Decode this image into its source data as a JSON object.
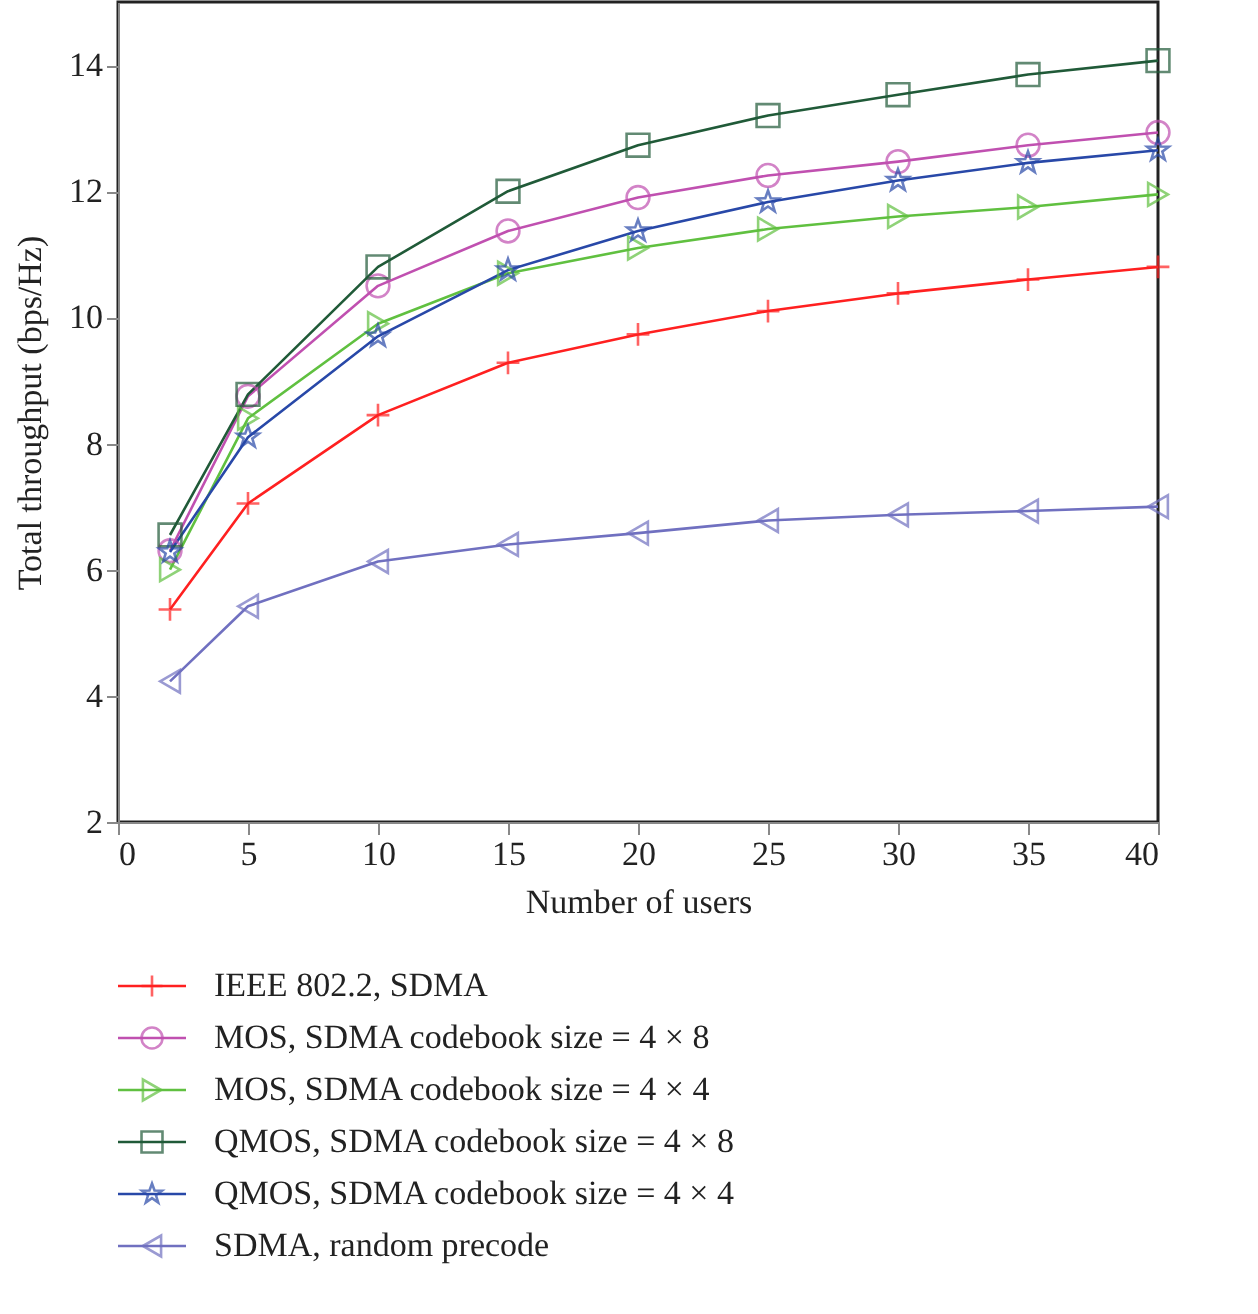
{
  "chart_data": {
    "type": "line",
    "xlabel": "Number of users",
    "ylabel": "Total throughput (bps/Hz)",
    "x": [
      2,
      5,
      10,
      15,
      20,
      25,
      30,
      35,
      40
    ],
    "xlim": [
      0,
      40
    ],
    "xticks": [
      0,
      5,
      10,
      15,
      20,
      25,
      30,
      35,
      40
    ],
    "ylim": [
      2,
      15
    ],
    "yticks": [
      2,
      4,
      6,
      8,
      10,
      12,
      14
    ],
    "grid": false,
    "legend": "bottom",
    "line_style": "solid",
    "series": [
      {
        "name": "IEEE 802.2, SDMA",
        "color": "#ff2020",
        "marker": "cross",
        "values": [
          5.37,
          7.05,
          8.45,
          9.28,
          9.73,
          10.1,
          10.38,
          10.6,
          10.8
        ]
      },
      {
        "name": "MOS, SDMA codebook size = 4 × 8",
        "color": "#c050b0",
        "marker": "circle",
        "values": [
          6.3,
          8.75,
          10.5,
          11.37,
          11.9,
          12.25,
          12.47,
          12.73,
          12.93
        ]
      },
      {
        "name": "MOS, SDMA codebook size = 4 × 4",
        "color": "#60c040",
        "marker": "triangle-right",
        "values": [
          6.0,
          8.4,
          9.9,
          10.7,
          11.1,
          11.4,
          11.6,
          11.75,
          11.95
        ]
      },
      {
        "name": "QMOS, SDMA codebook size = 4 × 8",
        "color": "#205a38",
        "marker": "square",
        "values": [
          6.55,
          8.78,
          10.8,
          12.0,
          12.73,
          13.2,
          13.53,
          13.85,
          14.07
        ]
      },
      {
        "name": "QMOS, SDMA codebook size = 4 × 4",
        "color": "#2848a8",
        "marker": "star",
        "values": [
          6.28,
          8.1,
          9.7,
          10.75,
          11.37,
          11.83,
          12.17,
          12.45,
          12.65
        ]
      },
      {
        "name": "SDMA, random precode",
        "color": "#7070c0",
        "marker": "triangle-left",
        "values": [
          4.23,
          5.42,
          6.13,
          6.4,
          6.58,
          6.78,
          6.87,
          6.93,
          7.0
        ]
      }
    ]
  }
}
